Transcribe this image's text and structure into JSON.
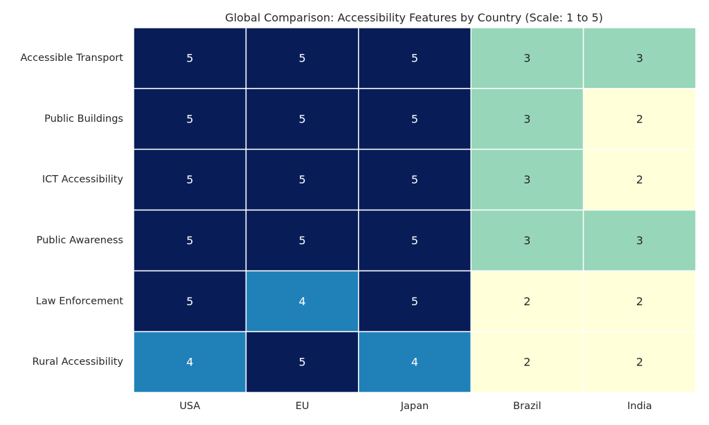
{
  "chart_data": {
    "type": "heatmap",
    "title": "Global Comparison: Accessibility Features by Country (Scale: 1 to 5)",
    "columns": [
      "USA",
      "EU",
      "Japan",
      "Brazil",
      "India"
    ],
    "rows": [
      "Accessible Transport",
      "Public Buildings",
      "ICT Accessibility",
      "Public Awareness",
      "Law Enforcement",
      "Rural Accessibility"
    ],
    "values": [
      [
        5,
        5,
        5,
        3,
        3
      ],
      [
        5,
        5,
        5,
        3,
        2
      ],
      [
        5,
        5,
        5,
        3,
        2
      ],
      [
        5,
        5,
        5,
        3,
        3
      ],
      [
        5,
        4,
        5,
        2,
        2
      ],
      [
        4,
        5,
        4,
        2,
        2
      ]
    ],
    "colorbar": false,
    "color_map": {
      "2": "#ffffd9",
      "3": "#97d6b9",
      "4": "#2081b9",
      "5": "#081d58"
    },
    "text_colors": {
      "dark": "#262626",
      "light": "#ffffff"
    },
    "grid_line_color": "#ffffff"
  }
}
